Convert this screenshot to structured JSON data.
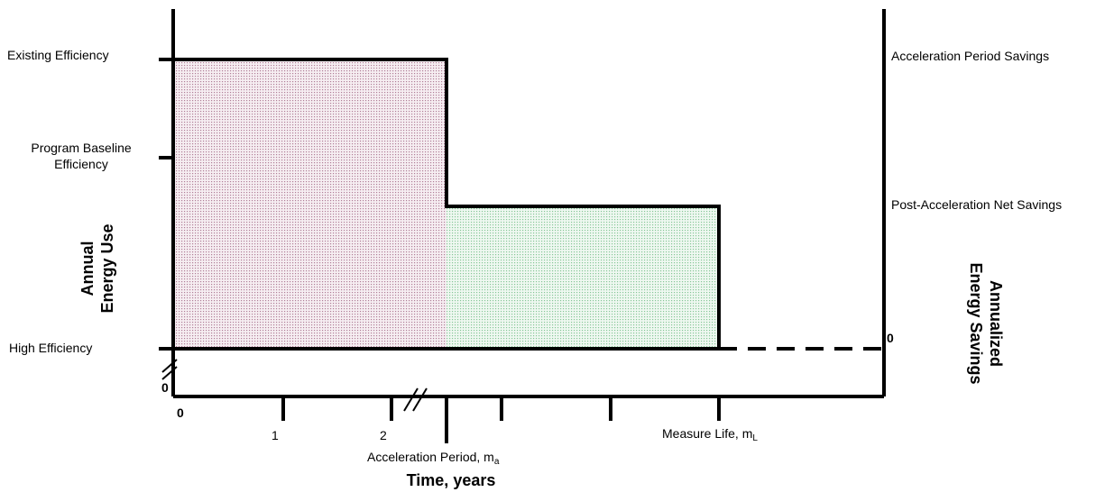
{
  "left_axis": {
    "title_line1": "Annual",
    "title_line2": "Energy Use",
    "levels": {
      "existing": "Existing Efficiency",
      "program_line1": "Program Baseline",
      "program_line2": "Efficiency",
      "high": "High Efficiency"
    },
    "zero": "0"
  },
  "right_axis": {
    "title_line1": "Annualized",
    "title_line2": "Energy Savings",
    "acceleration_savings": "Acceleration Period Savings",
    "post_savings": "Post-Acceleration Net Savings",
    "zero": "0"
  },
  "x_axis": {
    "title": "Time, years",
    "zero": "0",
    "tick1": "1",
    "tick2": "2",
    "acceleration_main": "Acceleration Period, m",
    "acceleration_sub": "a",
    "measure_main": "Measure Life, m",
    "measure_sub": "L"
  },
  "colors": {
    "acceleration_fill": "#c8a0b4",
    "post_fill": "#a6d9b4"
  }
}
